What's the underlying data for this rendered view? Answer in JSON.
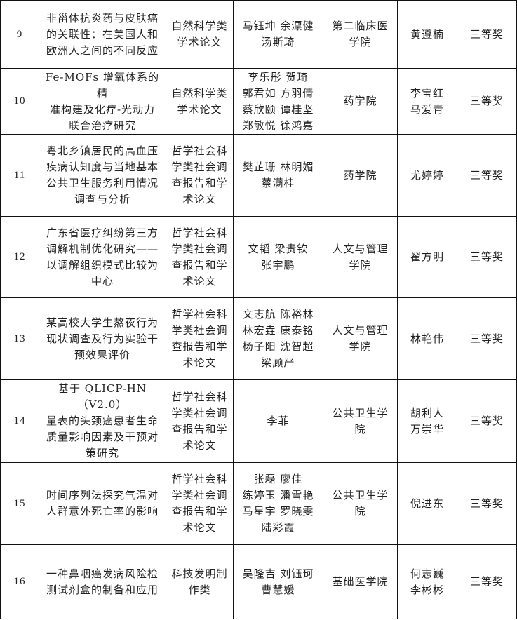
{
  "rows": [
    {
      "no": "9",
      "title": "非甾体抗炎药与皮肤癌\n的关联性：在美国人和\n欧洲人之间的不同反应",
      "category": "自然科学类\n学术论文",
      "authors": "马钰坤  余漂健\n汤斯琦",
      "college": "第二临床医\n学院",
      "advisor": "黄遵楠",
      "award": "三等奖"
    },
    {
      "no": "10",
      "title": "Fe-MOFs 增氧体系的精\n准构建及化疗-光动力\n联合治疗研究",
      "category": "自然科学类\n学术论文",
      "authors": "李乐彤   贺琦\n郭君如  方羽倩\n蔡欣颐  谭桂坚\n郑敏悦  徐鸿嘉",
      "college": "药学院",
      "advisor": "李宝红\n马爱青",
      "award": "三等奖"
    },
    {
      "no": "11",
      "title": "粤北乡镇居民的高血压\n疾病认知度与当地基本\n公共卫生服务利用情况\n调查与分析",
      "category": "哲学社会科\n学类社会调\n查报告和学\n术论文",
      "authors": "樊芷珊  林明媚\n蔡满桂",
      "college": "药学院",
      "advisor": "尤婷婷",
      "award": "三等奖"
    },
    {
      "no": "12",
      "title": "广东省医疗纠纷第三方\n调解机制优化研究——\n以调解组织模式比较为\n中心",
      "category": "哲学社会科\n学类社会调\n查报告和学\n术论文",
      "authors": "文韬   梁贵钦\n张宇鹏",
      "college": "人文与管理\n学院",
      "advisor": "翟方明",
      "award": "三等奖"
    },
    {
      "no": "13",
      "title": "某高校大学生熬夜行为\n现状调查及行为实验干\n预效果评价",
      "category": "哲学社会科\n学类社会调\n查报告和学\n术论文",
      "authors": "文志航  陈裕林\n林宏垚  康泰铭\n杨子阳  沈智超\n梁顾严",
      "college": "人文与管理\n学院",
      "advisor": "林艳伟",
      "award": "三等奖"
    },
    {
      "no": "14",
      "title": "基于 QLICP-HN（V2.0）\n量表的头颈癌患者生命\n质量影响因素及干预对\n策研究",
      "category": "哲学社会科\n学类社会调\n查报告和学\n术论文",
      "authors": "李菲",
      "college": "公共卫生学\n院",
      "advisor": "胡利人\n万崇华",
      "award": "三等奖"
    },
    {
      "no": "15",
      "title": "时间序列法探究气温对\n人群意外死亡率的影响",
      "category": "哲学社会科\n学类社会调\n查报告和学\n术论文",
      "authors": "张磊   廖佳\n练婷玉   潘雪艳\n马星宇  罗晓雯\n陆彩霞",
      "college": "公共卫生学\n院",
      "advisor": "倪进东",
      "award": "三等奖"
    },
    {
      "no": "16",
      "title": "一种鼻咽癌发病风险检\n测试剂盒的制备和应用",
      "category": "科技发明制\n作类",
      "authors": "吴隆吉  刘钰珂\n曹慧媛",
      "college": "基础医学院",
      "advisor": "何志巍\n李彬彬",
      "award": "三等奖"
    }
  ]
}
